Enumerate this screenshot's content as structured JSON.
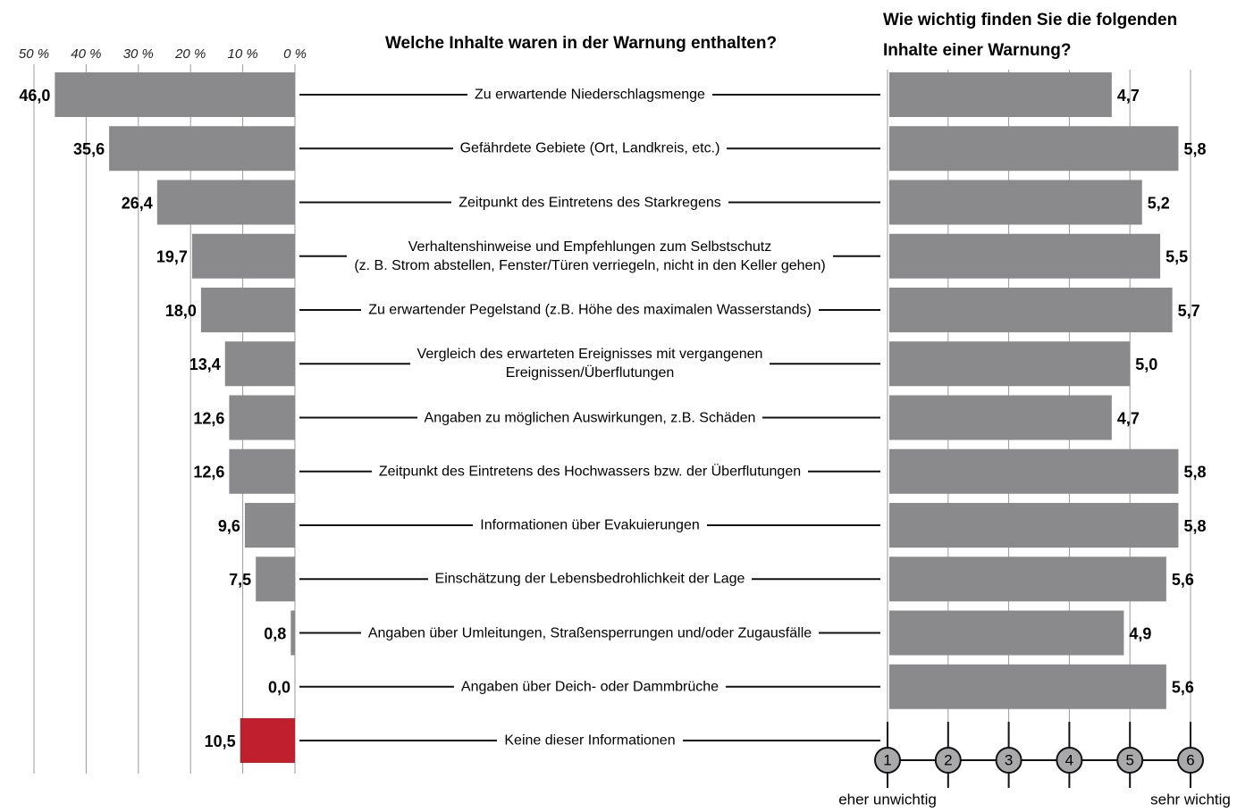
{
  "chart_data": [
    {
      "type": "bar",
      "title": "Welche Inhalte waren in der Warnung enthalten?",
      "categories": [
        "Zu erwartende Niederschlagsmenge",
        "Gefährdete Gebiete (Ort, Landkreis, etc.)",
        "Zeitpunkt des Eintretens des Starkregens",
        "Verhaltenshinweise und Empfehlungen zum Selbstschutz\n(z. B. Strom abstellen, Fenster/Türen verriegeln, nicht in den Keller gehen)",
        "Zu erwartender Pegelstand (z.B. Höhe des maximalen Wasserstands)",
        "Vergleich des erwarteten Ereignisses mit vergangenen\nEreignissen/Überflutungen",
        "Angaben zu möglichen Auswirkungen, z.B. Schäden",
        "Zeitpunkt des Eintretens des Hochwassers bzw. der Überflutungen",
        "Informationen über Evakuierungen",
        "Einschätzung der Lebensbedrohlichkeit der Lage",
        "Angaben über Umleitungen, Straßensperrungen und/oder Zugausfälle",
        "Angaben über Deich- oder Dammbrüche",
        "Keine dieser Informationen"
      ],
      "series": [
        {
          "values": [
            46.0,
            35.6,
            26.4,
            19.7,
            18.0,
            13.4,
            12.6,
            12.6,
            9.6,
            7.5,
            0.8,
            0.0,
            10.5
          ],
          "value_labels": [
            "46,0",
            "35,6",
            "26,4",
            "19,7",
            "18,0",
            "13,4",
            "12,6",
            "12,6",
            "9,6",
            "7,5",
            "0,8",
            "0,0",
            "10,5"
          ],
          "colors": [
            "#8a8a8c",
            "#8a8a8c",
            "#8a8a8c",
            "#8a8a8c",
            "#8a8a8c",
            "#8a8a8c",
            "#8a8a8c",
            "#8a8a8c",
            "#8a8a8c",
            "#8a8a8c",
            "#8a8a8c",
            "#8a8a8c",
            "#c0202e"
          ]
        }
      ],
      "xlim": [
        0,
        50
      ],
      "xticks": [
        {
          "value": 50,
          "label": "50 %"
        },
        {
          "value": 40,
          "label": "40 %"
        },
        {
          "value": 30,
          "label": "30 %"
        },
        {
          "value": 20,
          "label": "20 %"
        },
        {
          "value": 10,
          "label": "10 %"
        },
        {
          "value": 0,
          "label": "0 %"
        }
      ],
      "grid": true
    },
    {
      "type": "bar",
      "title": "Wie wichtig finden Sie die folgenden\nInhalte einer Warnung?",
      "series": [
        {
          "values": [
            4.7,
            5.8,
            5.2,
            5.5,
            5.7,
            5.0,
            4.7,
            5.8,
            5.8,
            5.6,
            4.9,
            5.6,
            null
          ],
          "value_labels": [
            "4,7",
            "5,8",
            "5,2",
            "5,5",
            "5,7",
            "5,0",
            "4,7",
            "5,8",
            "5,8",
            "5,6",
            "4,9",
            "5,6",
            null
          ],
          "color": "#8a8a8c"
        }
      ],
      "xlim": [
        1,
        6
      ],
      "xticks": [
        1,
        2,
        3,
        4,
        5,
        6
      ],
      "xlabel_low": "eher unwichtig",
      "xlabel_high": "sehr wichtig",
      "grid": true
    }
  ]
}
